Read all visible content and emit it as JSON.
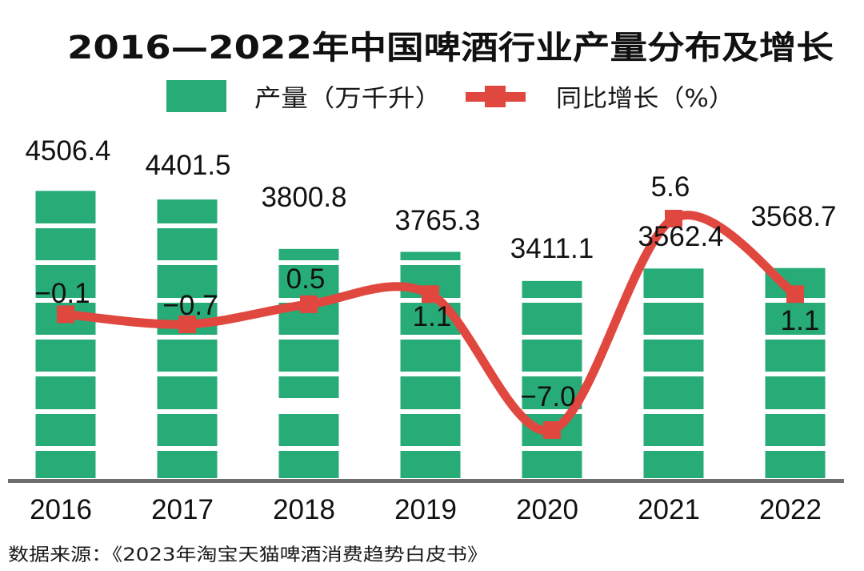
{
  "colors": {
    "bar": "#27ab77",
    "line": "#e0473f",
    "axis": "#6e6e6e",
    "text": "#111111",
    "stripe": "#ffffff"
  },
  "chart_data": {
    "type": "bar",
    "title": "2016—2022年中国啤酒行业产量分布及增长",
    "categories": [
      "2016",
      "2017",
      "2018",
      "2019",
      "2020",
      "2021",
      "2022"
    ],
    "series": [
      {
        "name": "产量（万千升）",
        "type": "bar",
        "values": [
          4506.4,
          4401.5,
          3800.8,
          3765.3,
          3411.1,
          3562.4,
          3568.7
        ],
        "labels": [
          "4506.4",
          "4401.5",
          "3800.8",
          "3765.3",
          "3411.1",
          "3562.4",
          "3568.7"
        ]
      },
      {
        "name": "同比增长（%）",
        "type": "line",
        "values": [
          -0.1,
          -0.7,
          0.5,
          1.1,
          -7.0,
          5.6,
          1.1
        ],
        "labels": [
          "−0.1",
          "−0.7",
          "0.5",
          "1.1",
          "−7.0",
          "5.6",
          "1.1"
        ]
      }
    ],
    "legend": [
      "产量（万千升）",
      "同比增长（%）"
    ],
    "legend_position": "top-center",
    "xlabel": "",
    "ylabel": "",
    "grid": false
  },
  "source": "数据来源：《2023年淘宝天猫啤酒消费趋势白皮书》"
}
